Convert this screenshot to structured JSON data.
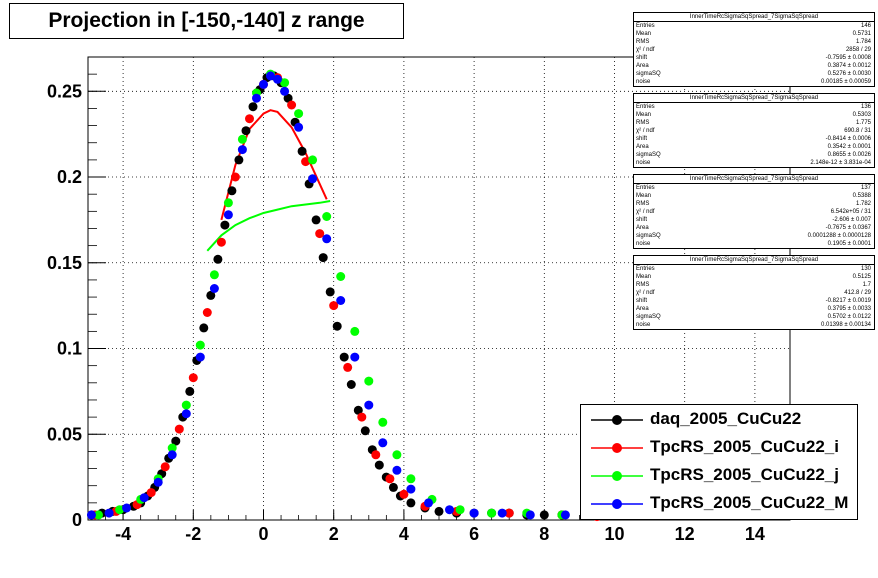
{
  "title": "Projection in [-150,-140] z range",
  "colors": {
    "daq": "#000000",
    "i": "#ff0000",
    "j": "#00ff00",
    "M": "#0000ff"
  },
  "stats_boxes": [
    {
      "header": "InnerTimeRcSigmaSqSpread_7SigmaSqSpread",
      "rows": [
        [
          "Entries",
          "146"
        ],
        [
          "Mean",
          "0.5731"
        ],
        [
          "RMS",
          "1.784"
        ],
        [
          "χ² / ndf",
          "2858 / 29"
        ],
        [
          "shift",
          "-0.7595 ± 0.0008"
        ],
        [
          "Area",
          "0.3874 ± 0.0012"
        ],
        [
          "sigmaSQ",
          "0.5276 ± 0.0030"
        ],
        [
          "noise",
          "0.00185 ± 0.00059"
        ]
      ]
    },
    {
      "header": "InnerTimeRcSigmaSqSpread_7SigmaSqSpread",
      "rows": [
        [
          "Entries",
          "136"
        ],
        [
          "Mean",
          "0.5303"
        ],
        [
          "RMS",
          "1.775"
        ],
        [
          "χ² / ndf",
          "690.8 / 31"
        ],
        [
          "shift",
          "-0.8414 ± 0.0006"
        ],
        [
          "Area",
          "0.3542 ± 0.0001"
        ],
        [
          "sigmaSQ",
          "0.8655 ± 0.0026"
        ],
        [
          "noise",
          "2.148e-12 ± 3.831e-04"
        ]
      ]
    },
    {
      "header": "InnerTimeRcSigmaSqSpread_7SigmaSqSpread",
      "rows": [
        [
          "Entries",
          "137"
        ],
        [
          "Mean",
          "0.5388"
        ],
        [
          "RMS",
          "1.782"
        ],
        [
          "χ² / ndf",
          "6.542e+05 / 31"
        ],
        [
          "shift",
          "-2.606 ± 0.007"
        ],
        [
          "Area",
          "-0.7675 ± 0.0367"
        ],
        [
          "sigmaSQ",
          "0.0001288 ± 0.0000128"
        ],
        [
          "noise",
          "0.1905 ± 0.0001"
        ]
      ]
    },
    {
      "header": "InnerTimeRcSigmaSqSpread_7SigmaSqSpread",
      "rows": [
        [
          "Entries",
          "130"
        ],
        [
          "Mean",
          "0.5125"
        ],
        [
          "RMS",
          "1.7"
        ],
        [
          "χ² / ndf",
          "412.8 / 29"
        ],
        [
          "shift",
          "-0.8217 ± 0.0019"
        ],
        [
          "Area",
          "0.3795 ± 0.0033"
        ],
        [
          "sigmaSQ",
          "0.5702 ± 0.0122"
        ],
        [
          "noise",
          "0.01398 ± 0.00134"
        ]
      ]
    }
  ],
  "legend": [
    {
      "label": "daq_2005_CuCu22",
      "color": "#000000"
    },
    {
      "label": "TpcRS_2005_CuCu22_i",
      "color": "#ff0000"
    },
    {
      "label": "TpcRS_2005_CuCu22_j",
      "color": "#00ff00"
    },
    {
      "label": "TpcRS_2005_CuCu22_M",
      "color": "#0000ff"
    }
  ],
  "chart_data": {
    "type": "scatter",
    "title": "Projection in [-150,-140] z range",
    "xlabel": "",
    "ylabel": "",
    "xlim": [
      -5,
      15
    ],
    "ylim": [
      0,
      0.27
    ],
    "x_ticks": [
      "-4",
      "-2",
      "0",
      "2",
      "4",
      "6",
      "8",
      "10",
      "12",
      "14"
    ],
    "y_ticks": [
      "0",
      "0.05",
      "0.1",
      "0.15",
      "0.2",
      "0.25"
    ],
    "grid": true,
    "legend_position": "bottom-right",
    "series": [
      {
        "name": "daq_2005_CuCu22",
        "color": "#000000",
        "points": [
          [
            -4.9,
            0.003
          ],
          [
            -4.6,
            0.004
          ],
          [
            -4.3,
            0.005
          ],
          [
            -4.0,
            0.006
          ],
          [
            -3.7,
            0.008
          ],
          [
            -3.5,
            0.01
          ],
          [
            -3.3,
            0.014
          ],
          [
            -3.1,
            0.019
          ],
          [
            -2.9,
            0.027
          ],
          [
            -2.7,
            0.036
          ],
          [
            -2.5,
            0.046
          ],
          [
            -2.3,
            0.06
          ],
          [
            -2.1,
            0.075
          ],
          [
            -1.9,
            0.093
          ],
          [
            -1.7,
            0.112
          ],
          [
            -1.5,
            0.131
          ],
          [
            -1.3,
            0.152
          ],
          [
            -1.1,
            0.172
          ],
          [
            -0.9,
            0.192
          ],
          [
            -0.7,
            0.21
          ],
          [
            -0.5,
            0.227
          ],
          [
            -0.3,
            0.241
          ],
          [
            -0.1,
            0.251
          ],
          [
            0.1,
            0.258
          ],
          [
            0.3,
            0.259
          ],
          [
            0.5,
            0.255
          ],
          [
            0.7,
            0.246
          ],
          [
            0.9,
            0.232
          ],
          [
            1.1,
            0.215
          ],
          [
            1.3,
            0.196
          ],
          [
            1.5,
            0.175
          ],
          [
            1.7,
            0.153
          ],
          [
            1.9,
            0.133
          ],
          [
            2.1,
            0.113
          ],
          [
            2.3,
            0.095
          ],
          [
            2.5,
            0.079
          ],
          [
            2.7,
            0.064
          ],
          [
            2.9,
            0.052
          ],
          [
            3.1,
            0.041
          ],
          [
            3.3,
            0.032
          ],
          [
            3.5,
            0.025
          ],
          [
            3.7,
            0.019
          ],
          [
            3.9,
            0.014
          ],
          [
            4.2,
            0.01
          ],
          [
            4.6,
            0.007
          ],
          [
            5.0,
            0.005
          ],
          [
            5.5,
            0.004
          ],
          [
            6.0,
            0.004
          ],
          [
            6.5,
            0.004
          ],
          [
            7.0,
            0.004
          ],
          [
            7.5,
            0.003
          ],
          [
            8.0,
            0.003
          ],
          [
            8.5,
            0.003
          ]
        ]
      },
      {
        "name": "TpcRS_2005_CuCu22_i",
        "color": "#ff0000",
        "points": [
          [
            -4.8,
            0.003
          ],
          [
            -4.2,
            0.005
          ],
          [
            -3.6,
            0.009
          ],
          [
            -3.2,
            0.016
          ],
          [
            -2.8,
            0.031
          ],
          [
            -2.4,
            0.053
          ],
          [
            -2.0,
            0.083
          ],
          [
            -1.6,
            0.121
          ],
          [
            -1.2,
            0.162
          ],
          [
            -0.8,
            0.2
          ],
          [
            -0.4,
            0.234
          ],
          [
            0.0,
            0.254
          ],
          [
            0.4,
            0.258
          ],
          [
            0.8,
            0.242
          ],
          [
            1.2,
            0.209
          ],
          [
            1.6,
            0.167
          ],
          [
            2.0,
            0.125
          ],
          [
            2.4,
            0.089
          ],
          [
            2.8,
            0.06
          ],
          [
            3.2,
            0.038
          ],
          [
            3.6,
            0.024
          ],
          [
            4.0,
            0.015
          ],
          [
            4.6,
            0.008
          ],
          [
            5.5,
            0.005
          ],
          [
            7.0,
            0.004
          ],
          [
            8.5,
            0.003
          ],
          [
            9.5,
            0.002
          ]
        ],
        "fit": [
          [
            -1.2,
            0.175
          ],
          [
            -0.8,
            0.207
          ],
          [
            -0.4,
            0.228
          ],
          [
            0.0,
            0.237
          ],
          [
            0.2,
            0.239
          ],
          [
            0.4,
            0.238
          ],
          [
            0.8,
            0.229
          ],
          [
            1.2,
            0.214
          ],
          [
            1.6,
            0.196
          ],
          [
            1.8,
            0.187
          ]
        ]
      },
      {
        "name": "TpcRS_2005_CuCu22_j",
        "color": "#00ff00",
        "points": [
          [
            -4.7,
            0.003
          ],
          [
            -4.1,
            0.006
          ],
          [
            -3.5,
            0.012
          ],
          [
            -3.0,
            0.024
          ],
          [
            -2.6,
            0.042
          ],
          [
            -2.2,
            0.067
          ],
          [
            -1.8,
            0.102
          ],
          [
            -1.4,
            0.143
          ],
          [
            -1.0,
            0.185
          ],
          [
            -0.6,
            0.222
          ],
          [
            -0.2,
            0.249
          ],
          [
            0.2,
            0.26
          ],
          [
            0.6,
            0.255
          ],
          [
            1.0,
            0.237
          ],
          [
            1.4,
            0.21
          ],
          [
            1.8,
            0.177
          ],
          [
            2.2,
            0.142
          ],
          [
            2.6,
            0.11
          ],
          [
            3.0,
            0.081
          ],
          [
            3.4,
            0.057
          ],
          [
            3.8,
            0.038
          ],
          [
            4.2,
            0.024
          ],
          [
            4.8,
            0.012
          ],
          [
            5.6,
            0.006
          ],
          [
            6.5,
            0.004
          ],
          [
            7.5,
            0.004
          ],
          [
            8.5,
            0.003
          ]
        ],
        "fit": [
          [
            -1.6,
            0.157
          ],
          [
            -1.2,
            0.166
          ],
          [
            -0.8,
            0.172
          ],
          [
            -0.4,
            0.176
          ],
          [
            0.0,
            0.179
          ],
          [
            0.4,
            0.181
          ],
          [
            0.8,
            0.183
          ],
          [
            1.2,
            0.184
          ],
          [
            1.6,
            0.185
          ],
          [
            1.9,
            0.186
          ]
        ]
      },
      {
        "name": "TpcRS_2005_CuCu22_M",
        "color": "#0000ff",
        "points": [
          [
            -4.9,
            0.003
          ],
          [
            -4.4,
            0.004
          ],
          [
            -3.9,
            0.007
          ],
          [
            -3.4,
            0.013
          ],
          [
            -3.0,
            0.022
          ],
          [
            -2.6,
            0.038
          ],
          [
            -2.2,
            0.062
          ],
          [
            -1.8,
            0.095
          ],
          [
            -1.4,
            0.135
          ],
          [
            -1.0,
            0.178
          ],
          [
            -0.6,
            0.216
          ],
          [
            -0.2,
            0.246
          ],
          [
            0.0,
            0.254
          ],
          [
            0.2,
            0.259
          ],
          [
            0.4,
            0.257
          ],
          [
            0.6,
            0.25
          ],
          [
            1.0,
            0.229
          ],
          [
            1.4,
            0.199
          ],
          [
            1.8,
            0.164
          ],
          [
            2.2,
            0.128
          ],
          [
            2.6,
            0.095
          ],
          [
            3.0,
            0.067
          ],
          [
            3.4,
            0.045
          ],
          [
            3.8,
            0.029
          ],
          [
            4.2,
            0.018
          ],
          [
            4.7,
            0.01
          ],
          [
            5.3,
            0.006
          ],
          [
            6.0,
            0.004
          ],
          [
            6.8,
            0.004
          ],
          [
            7.6,
            0.003
          ],
          [
            8.6,
            0.003
          ],
          [
            9.4,
            0.003
          ]
        ]
      }
    ]
  }
}
